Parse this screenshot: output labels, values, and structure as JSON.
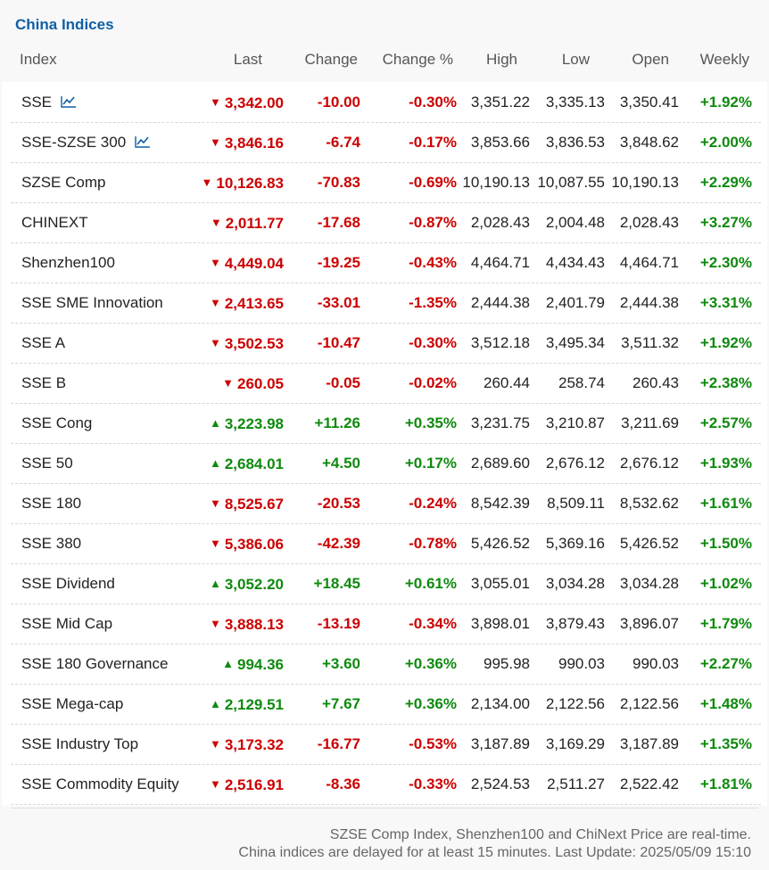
{
  "title": "China Indices",
  "headers": {
    "index": "Index",
    "last": "Last",
    "change": "Change",
    "change_pct": "Change %",
    "high": "High",
    "low": "Low",
    "open": "Open",
    "weekly": "Weekly"
  },
  "colors": {
    "up": "#0e8a0e",
    "down": "#cc0000",
    "title": "#0e5fa6"
  },
  "rows": [
    {
      "name": "SSE",
      "chart_icon": true,
      "dir": "down",
      "last": "3,342.00",
      "change": "-10.00",
      "pct": "-0.30%",
      "high": "3,351.22",
      "low": "3,335.13",
      "open": "3,350.41",
      "weekly": "+1.92%"
    },
    {
      "name": "SSE-SZSE 300",
      "chart_icon": true,
      "dir": "down",
      "last": "3,846.16",
      "change": "-6.74",
      "pct": "-0.17%",
      "high": "3,853.66",
      "low": "3,836.53",
      "open": "3,848.62",
      "weekly": "+2.00%"
    },
    {
      "name": "SZSE Comp",
      "chart_icon": false,
      "dir": "down",
      "last": "10,126.83",
      "change": "-70.83",
      "pct": "-0.69%",
      "high": "10,190.13",
      "low": "10,087.55",
      "open": "10,190.13",
      "weekly": "+2.29%"
    },
    {
      "name": "CHINEXT",
      "chart_icon": false,
      "dir": "down",
      "last": "2,011.77",
      "change": "-17.68",
      "pct": "-0.87%",
      "high": "2,028.43",
      "low": "2,004.48",
      "open": "2,028.43",
      "weekly": "+3.27%"
    },
    {
      "name": "Shenzhen100",
      "chart_icon": false,
      "dir": "down",
      "last": "4,449.04",
      "change": "-19.25",
      "pct": "-0.43%",
      "high": "4,464.71",
      "low": "4,434.43",
      "open": "4,464.71",
      "weekly": "+2.30%"
    },
    {
      "name": "SSE SME Innovation",
      "chart_icon": false,
      "dir": "down",
      "last": "2,413.65",
      "change": "-33.01",
      "pct": "-1.35%",
      "high": "2,444.38",
      "low": "2,401.79",
      "open": "2,444.38",
      "weekly": "+3.31%"
    },
    {
      "name": "SSE A",
      "chart_icon": false,
      "dir": "down",
      "last": "3,502.53",
      "change": "-10.47",
      "pct": "-0.30%",
      "high": "3,512.18",
      "low": "3,495.34",
      "open": "3,511.32",
      "weekly": "+1.92%"
    },
    {
      "name": "SSE B",
      "chart_icon": false,
      "dir": "down",
      "last": "260.05",
      "change": "-0.05",
      "pct": "-0.02%",
      "high": "260.44",
      "low": "258.74",
      "open": "260.43",
      "weekly": "+2.38%"
    },
    {
      "name": "SSE Cong",
      "chart_icon": false,
      "dir": "up",
      "last": "3,223.98",
      "change": "+11.26",
      "pct": "+0.35%",
      "high": "3,231.75",
      "low": "3,210.87",
      "open": "3,211.69",
      "weekly": "+2.57%"
    },
    {
      "name": "SSE 50",
      "chart_icon": false,
      "dir": "up",
      "last": "2,684.01",
      "change": "+4.50",
      "pct": "+0.17%",
      "high": "2,689.60",
      "low": "2,676.12",
      "open": "2,676.12",
      "weekly": "+1.93%"
    },
    {
      "name": "SSE 180",
      "chart_icon": false,
      "dir": "down",
      "last": "8,525.67",
      "change": "-20.53",
      "pct": "-0.24%",
      "high": "8,542.39",
      "low": "8,509.11",
      "open": "8,532.62",
      "weekly": "+1.61%"
    },
    {
      "name": "SSE 380",
      "chart_icon": false,
      "dir": "down",
      "last": "5,386.06",
      "change": "-42.39",
      "pct": "-0.78%",
      "high": "5,426.52",
      "low": "5,369.16",
      "open": "5,426.52",
      "weekly": "+1.50%"
    },
    {
      "name": "SSE Dividend",
      "chart_icon": false,
      "dir": "up",
      "last": "3,052.20",
      "change": "+18.45",
      "pct": "+0.61%",
      "high": "3,055.01",
      "low": "3,034.28",
      "open": "3,034.28",
      "weekly": "+1.02%"
    },
    {
      "name": "SSE Mid Cap",
      "chart_icon": false,
      "dir": "down",
      "last": "3,888.13",
      "change": "-13.19",
      "pct": "-0.34%",
      "high": "3,898.01",
      "low": "3,879.43",
      "open": "3,896.07",
      "weekly": "+1.79%"
    },
    {
      "name": "SSE 180 Governance",
      "chart_icon": false,
      "dir": "up",
      "last": "994.36",
      "change": "+3.60",
      "pct": "+0.36%",
      "high": "995.98",
      "low": "990.03",
      "open": "990.03",
      "weekly": "+2.27%"
    },
    {
      "name": "SSE Mega-cap",
      "chart_icon": false,
      "dir": "up",
      "last": "2,129.51",
      "change": "+7.67",
      "pct": "+0.36%",
      "high": "2,134.00",
      "low": "2,122.56",
      "open": "2,122.56",
      "weekly": "+1.48%"
    },
    {
      "name": "SSE Industry Top",
      "chart_icon": false,
      "dir": "down",
      "last": "3,173.32",
      "change": "-16.77",
      "pct": "-0.53%",
      "high": "3,187.89",
      "low": "3,169.29",
      "open": "3,187.89",
      "weekly": "+1.35%"
    },
    {
      "name": "SSE Commodity Equity",
      "chart_icon": false,
      "dir": "down",
      "last": "2,516.91",
      "change": "-8.36",
      "pct": "-0.33%",
      "high": "2,524.53",
      "low": "2,511.27",
      "open": "2,522.42",
      "weekly": "+1.81%"
    }
  ],
  "footer": {
    "line1": "SZSE Comp Index, Shenzhen100 and ChiNext Price are real-time.",
    "line2": "China indices are delayed for at least 15 minutes. Last Update: 2025/05/09 15:10"
  }
}
